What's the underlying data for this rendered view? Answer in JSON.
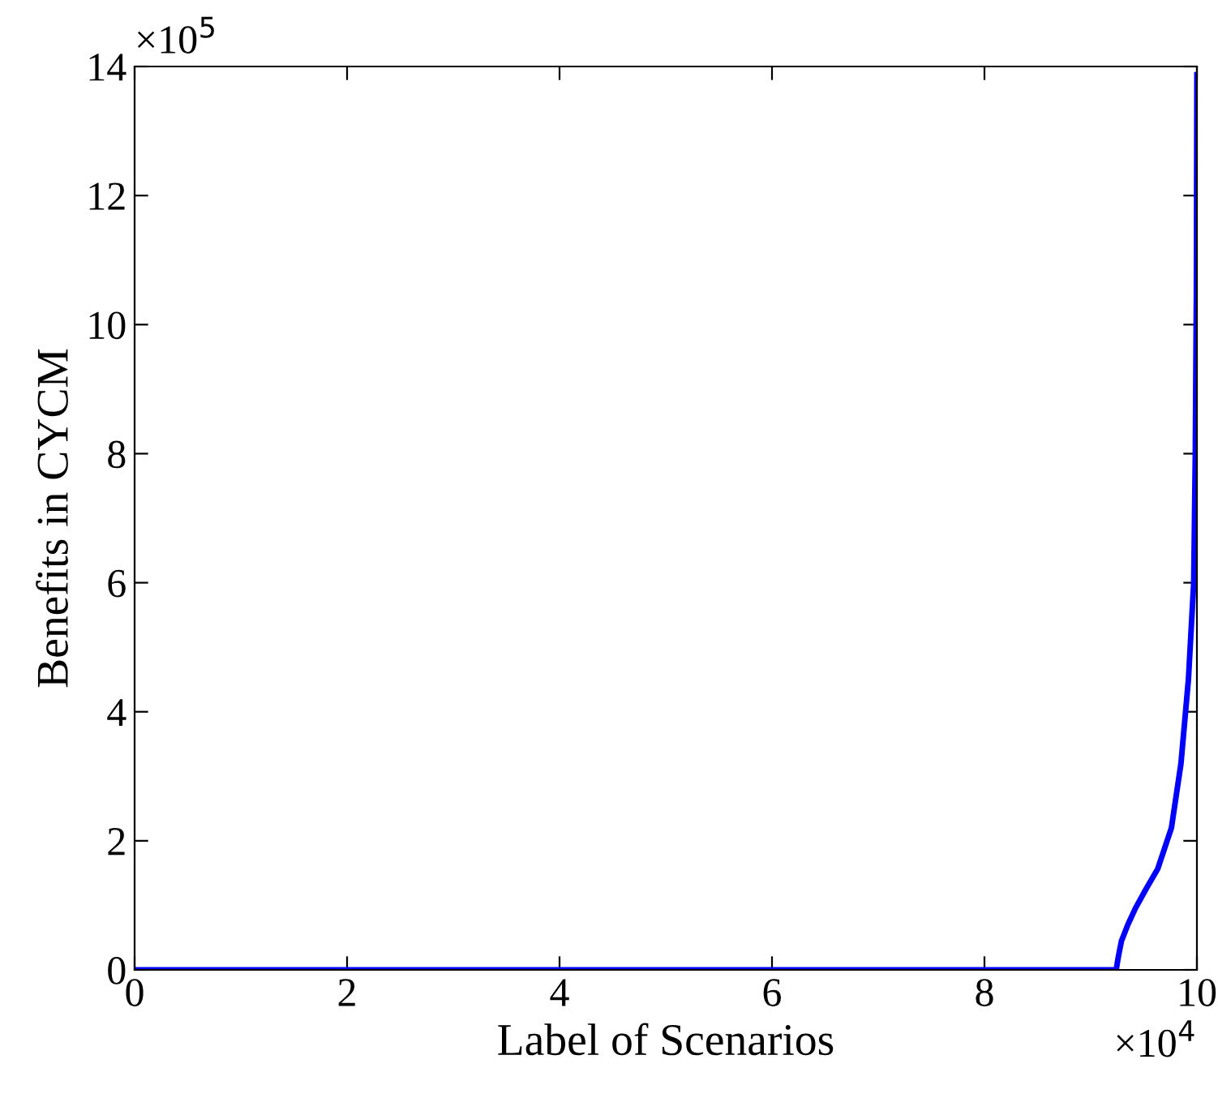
{
  "chart_data": {
    "type": "line",
    "xlabel": "Label of Scenarios",
    "ylabel": "Benefits in CYCM",
    "x": [
      0,
      9.24,
      9.26,
      9.29,
      9.35,
      9.42,
      9.52,
      9.63,
      9.76,
      9.85,
      9.92,
      9.97,
      9.985,
      9.995,
      10
    ],
    "series": [
      {
        "color": "#0000ff",
        "values": [
          0,
          0,
          0.2,
          0.45,
          0.7,
          0.95,
          1.25,
          1.56,
          2.2,
          3.2,
          4.5,
          6.0,
          8.0,
          10.5,
          13.87
        ]
      }
    ],
    "xlim": [
      0,
      10
    ],
    "ylim": [
      0,
      14
    ],
    "xticks": [
      0,
      2,
      4,
      6,
      8,
      10
    ],
    "yticks": [
      0,
      2,
      4,
      6,
      8,
      10,
      12,
      14
    ],
    "annotations": [
      "×10$^{5}$",
      "×10$^{4}$"
    ],
    "grid": false,
    "legend": false,
    "marker": "none",
    "line_style": "solid"
  }
}
